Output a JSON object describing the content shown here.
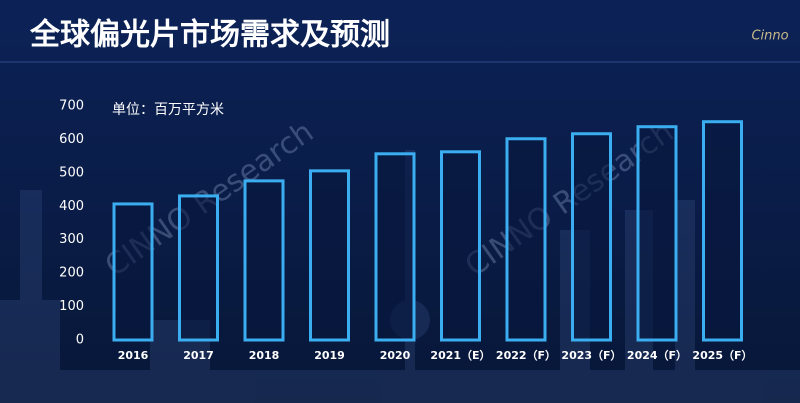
{
  "chart_data": {
    "type": "bar",
    "title": "全球偏光片市场需求及预测",
    "unit_label": "单位：百万平方米",
    "watermark": "CINNO Research",
    "logo": "Cinno",
    "categories": [
      "2016",
      "2017",
      "2018",
      "2019",
      "2020",
      "2021（E）",
      "2022（F）",
      "2023（F）",
      "2024（F）",
      "2025（F）"
    ],
    "values": [
      407,
      431,
      476,
      506,
      557,
      563,
      602,
      617,
      638,
      653
    ],
    "color": "#3aaef0",
    "ylim": [
      0,
      700
    ],
    "yticks": [
      0,
      100,
      200,
      300,
      400,
      500,
      600,
      700
    ],
    "grid": false
  }
}
